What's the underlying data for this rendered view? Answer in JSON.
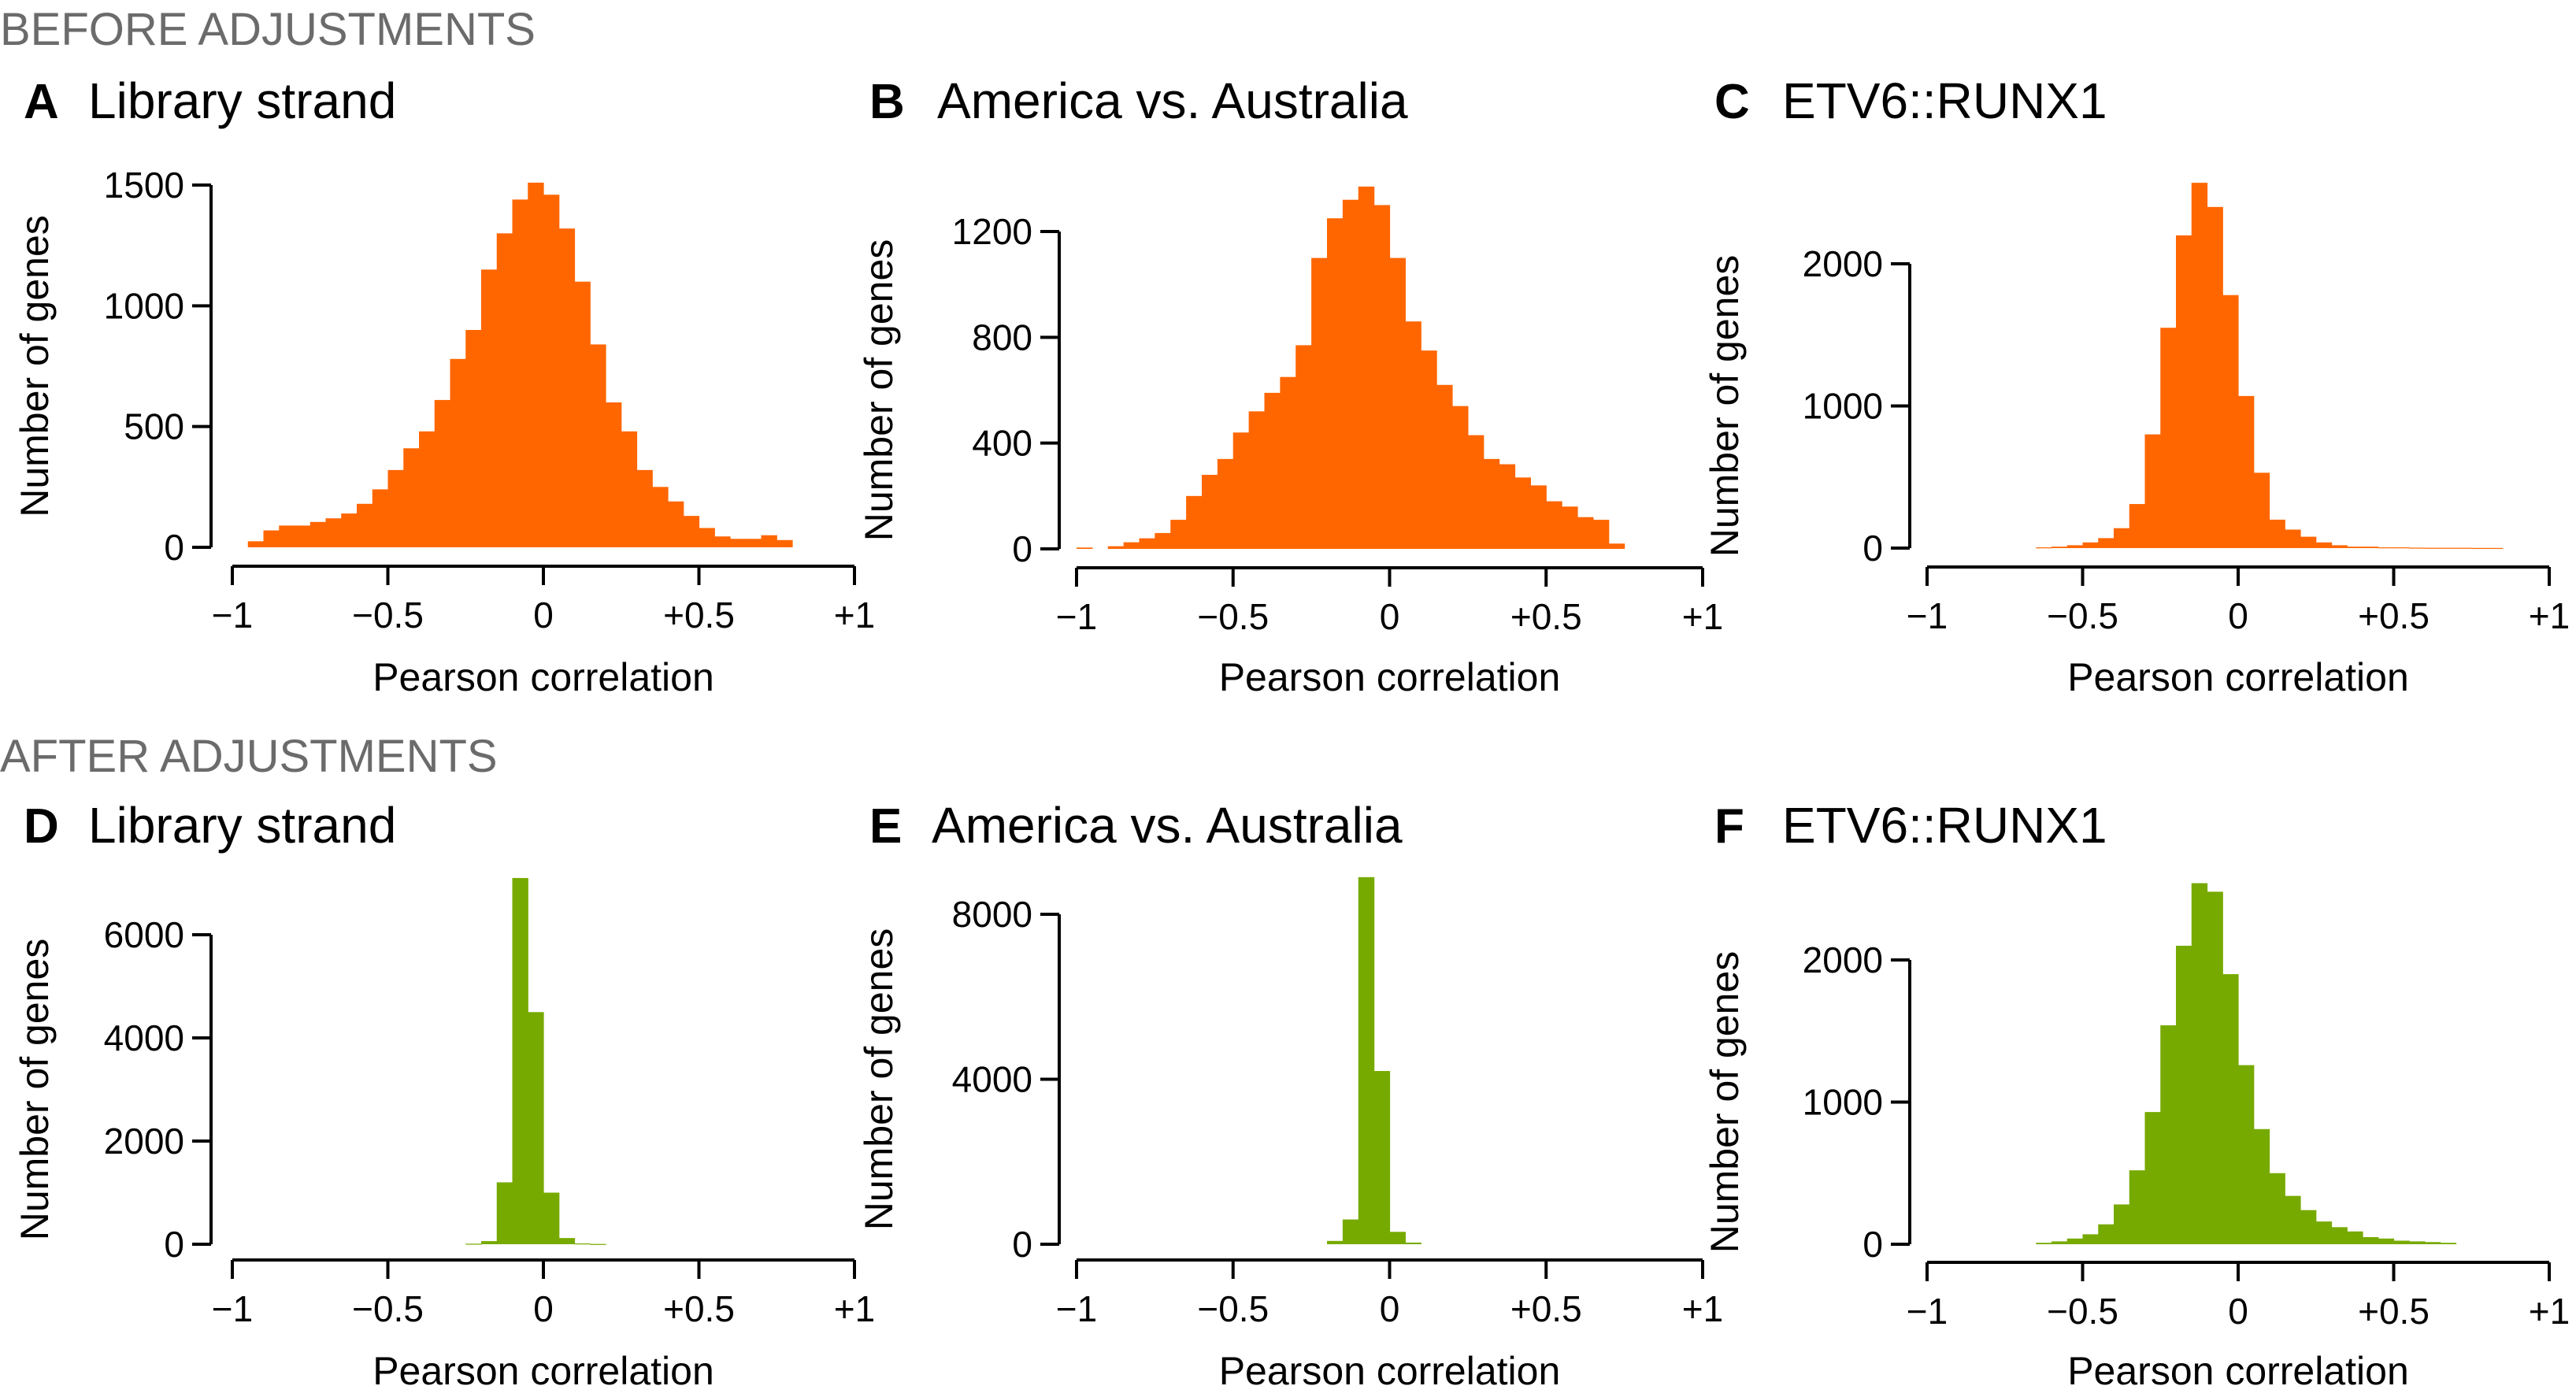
{
  "sections": [
    "BEFORE ADJUSTMENTS",
    "AFTER ADJUSTMENTS"
  ],
  "colors": {
    "before": "#ff6600",
    "after": "#77aa00",
    "section_text": "#6b6b6b"
  },
  "chart_data": [
    {
      "type": "bar",
      "panel": "A",
      "title": "Library strand",
      "section": 0,
      "xlabel": "Pearson correlation",
      "ylabel": "Number of genes",
      "xlim": [
        -1,
        1
      ],
      "ylim": [
        0,
        1500
      ],
      "xticks": [
        -1,
        -0.5,
        0,
        0.5,
        1
      ],
      "xtick_labels": [
        "−1",
        "−0.5",
        "0",
        "+0.5",
        "+1"
      ],
      "yticks": [
        0,
        500,
        1000,
        1500
      ],
      "ytick_labels": [
        "0",
        "500",
        "1000",
        "1500"
      ],
      "bin_start": -0.95,
      "bin_width": 0.05,
      "values": [
        25,
        70,
        90,
        90,
        105,
        120,
        140,
        180,
        240,
        320,
        410,
        480,
        610,
        780,
        900,
        1150,
        1300,
        1440,
        1510,
        1460,
        1320,
        1100,
        840,
        600,
        480,
        320,
        250,
        190,
        130,
        80,
        45,
        35,
        35,
        50,
        30
      ]
    },
    {
      "type": "bar",
      "panel": "B",
      "title": "America vs. Australia",
      "section": 0,
      "xlabel": "Pearson correlation",
      "ylabel": "Number of genes",
      "xlim": [
        -1,
        1
      ],
      "ylim": [
        0,
        1200
      ],
      "xticks": [
        -1,
        -0.5,
        0,
        0.5,
        1
      ],
      "xtick_labels": [
        "−1",
        "−0.5",
        "0",
        "+0.5",
        "+1"
      ],
      "yticks": [
        0,
        400,
        800,
        1200
      ],
      "ytick_labels": [
        "0",
        "400",
        "800",
        "1200"
      ],
      "bin_start": -1.0,
      "bin_width": 0.05,
      "values": [
        5,
        0,
        10,
        25,
        40,
        60,
        110,
        200,
        280,
        340,
        440,
        520,
        590,
        650,
        770,
        1100,
        1250,
        1320,
        1370,
        1300,
        1100,
        860,
        750,
        620,
        540,
        430,
        340,
        320,
        270,
        240,
        180,
        160,
        120,
        110,
        20
      ]
    },
    {
      "type": "bar",
      "panel": "C",
      "title": "ETV6::RUNX1",
      "section": 0,
      "xlabel": "Pearson correlation",
      "ylabel": "Number of genes",
      "xlim": [
        -1,
        1
      ],
      "ylim": [
        0,
        2000
      ],
      "xticks": [
        -1,
        -0.5,
        0,
        0.5,
        1
      ],
      "xtick_labels": [
        "−1",
        "−0.5",
        "0",
        "+0.5",
        "+1"
      ],
      "yticks": [
        0,
        1000,
        2000
      ],
      "ytick_labels": [
        "0",
        "1000",
        "2000"
      ],
      "bin_start": -0.65,
      "bin_width": 0.05,
      "values": [
        5,
        10,
        20,
        40,
        70,
        140,
        310,
        800,
        1550,
        2200,
        2570,
        2400,
        1780,
        1070,
        530,
        200,
        130,
        80,
        40,
        20,
        10,
        10,
        5,
        5,
        3,
        2,
        2,
        2,
        1,
        1
      ]
    },
    {
      "type": "bar",
      "panel": "D",
      "title": "Library strand",
      "section": 1,
      "xlabel": "Pearson correlation",
      "ylabel": "Number of genes",
      "xlim": [
        -1,
        1
      ],
      "ylim": [
        0,
        6000
      ],
      "xticks": [
        -1,
        -0.5,
        0,
        0.5,
        1
      ],
      "xtick_labels": [
        "−1",
        "−0.5",
        "0",
        "+0.5",
        "+1"
      ],
      "yticks": [
        0,
        2000,
        4000,
        6000
      ],
      "ytick_labels": [
        "0",
        "2000",
        "4000",
        "6000"
      ],
      "bin_start": -0.25,
      "bin_width": 0.05,
      "values": [
        10,
        60,
        1200,
        7100,
        4500,
        1000,
        120,
        15,
        5
      ]
    },
    {
      "type": "bar",
      "panel": "E",
      "title": "America vs. Australia",
      "section": 1,
      "xlabel": "Pearson correlation",
      "ylabel": "Number of genes",
      "xlim": [
        -1,
        1
      ],
      "ylim": [
        0,
        8000
      ],
      "xticks": [
        -1,
        -0.5,
        0,
        0.5,
        1
      ],
      "xtick_labels": [
        "−1",
        "−0.5",
        "0",
        "+0.5",
        "+1"
      ],
      "yticks": [
        0,
        4000,
        8000
      ],
      "ytick_labels": [
        "0",
        "4000",
        "8000"
      ],
      "bin_start": -0.25,
      "bin_width": 0.05,
      "values": [
        0,
        80,
        600,
        8900,
        4200,
        300,
        40,
        0,
        0
      ]
    },
    {
      "type": "bar",
      "panel": "F",
      "title": "ETV6::RUNX1",
      "section": 1,
      "xlabel": "Pearson correlation",
      "ylabel": "Number of genes",
      "xlim": [
        -1,
        1
      ],
      "ylim": [
        0,
        2000
      ],
      "xticks": [
        -1,
        -0.5,
        0,
        0.5,
        1
      ],
      "xtick_labels": [
        "−1",
        "−0.5",
        "0",
        "+0.5",
        "+1"
      ],
      "yticks": [
        0,
        1000,
        2000
      ],
      "ytick_labels": [
        "0",
        "1000",
        "2000"
      ],
      "bin_start": -0.65,
      "bin_width": 0.05,
      "values": [
        10,
        20,
        40,
        70,
        140,
        280,
        520,
        930,
        1540,
        2100,
        2540,
        2480,
        1900,
        1260,
        810,
        500,
        340,
        240,
        160,
        120,
        90,
        50,
        40,
        25,
        20,
        15,
        10
      ]
    }
  ]
}
